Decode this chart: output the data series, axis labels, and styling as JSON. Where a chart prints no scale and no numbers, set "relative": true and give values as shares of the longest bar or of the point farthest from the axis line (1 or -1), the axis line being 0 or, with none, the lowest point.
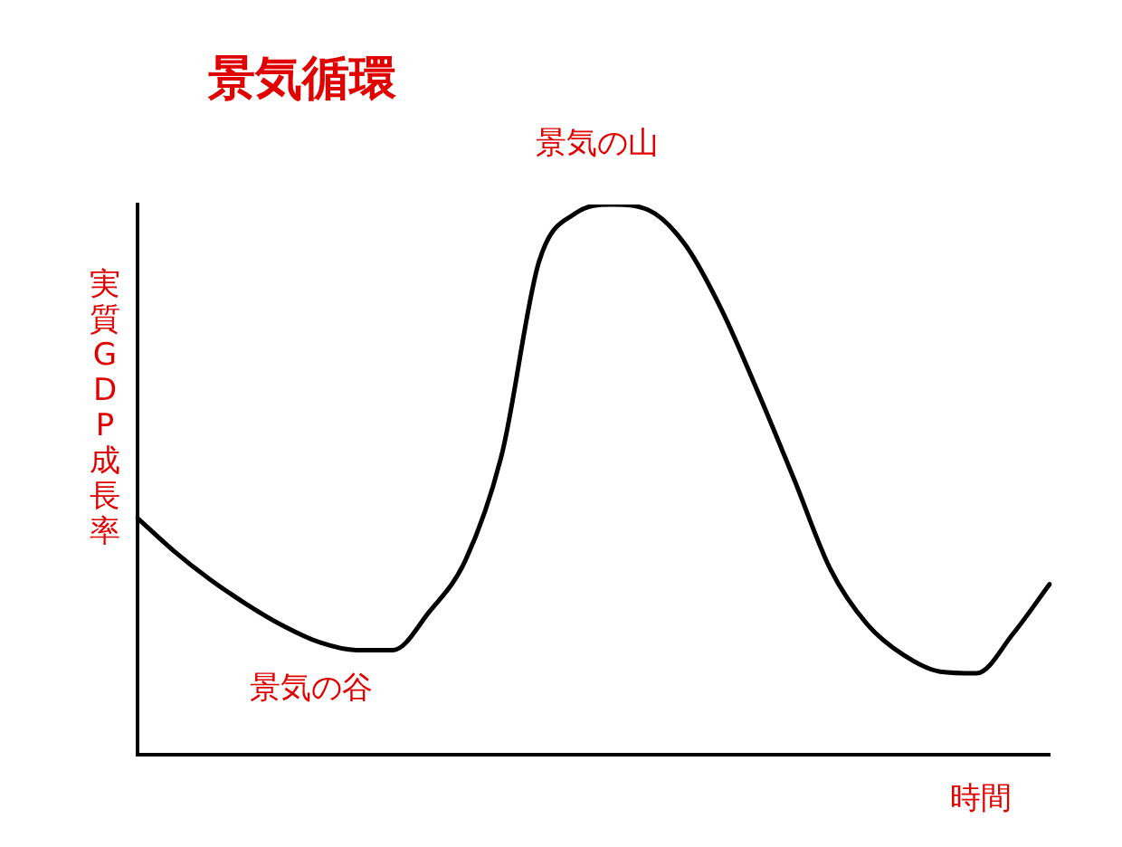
{
  "chart_data": {
    "type": "line",
    "title": "景気循環",
    "xlabel": "時間",
    "ylabel": "実質GDP成長率",
    "relative": true,
    "grid": false,
    "legend": false,
    "marker": "none",
    "line_style": "solid",
    "categories": [
      null,
      null,
      null,
      null,
      null,
      null,
      null,
      null,
      null,
      null,
      null,
      null,
      null,
      null,
      null,
      null,
      null,
      null,
      null,
      null,
      null,
      null,
      null,
      null,
      null,
      null
    ],
    "series": [
      {
        "color": "#000000",
        "values": [
          0.43,
          0.37,
          0.318,
          0.273,
          0.234,
          0.204,
          0.19,
          0.19,
          0.26,
          0.355,
          0.55,
          0.895,
          0.984,
          1,
          0.99,
          0.928,
          0.81,
          0.66,
          0.5,
          0.336,
          0.237,
          0.181,
          0.151,
          0.148,
          0.22,
          0.31
        ]
      }
    ],
    "annotations": [
      {
        "text": "景気の山",
        "y": 1
      },
      {
        "text": "景気の谷",
        "y": 0.19
      }
    ]
  }
}
